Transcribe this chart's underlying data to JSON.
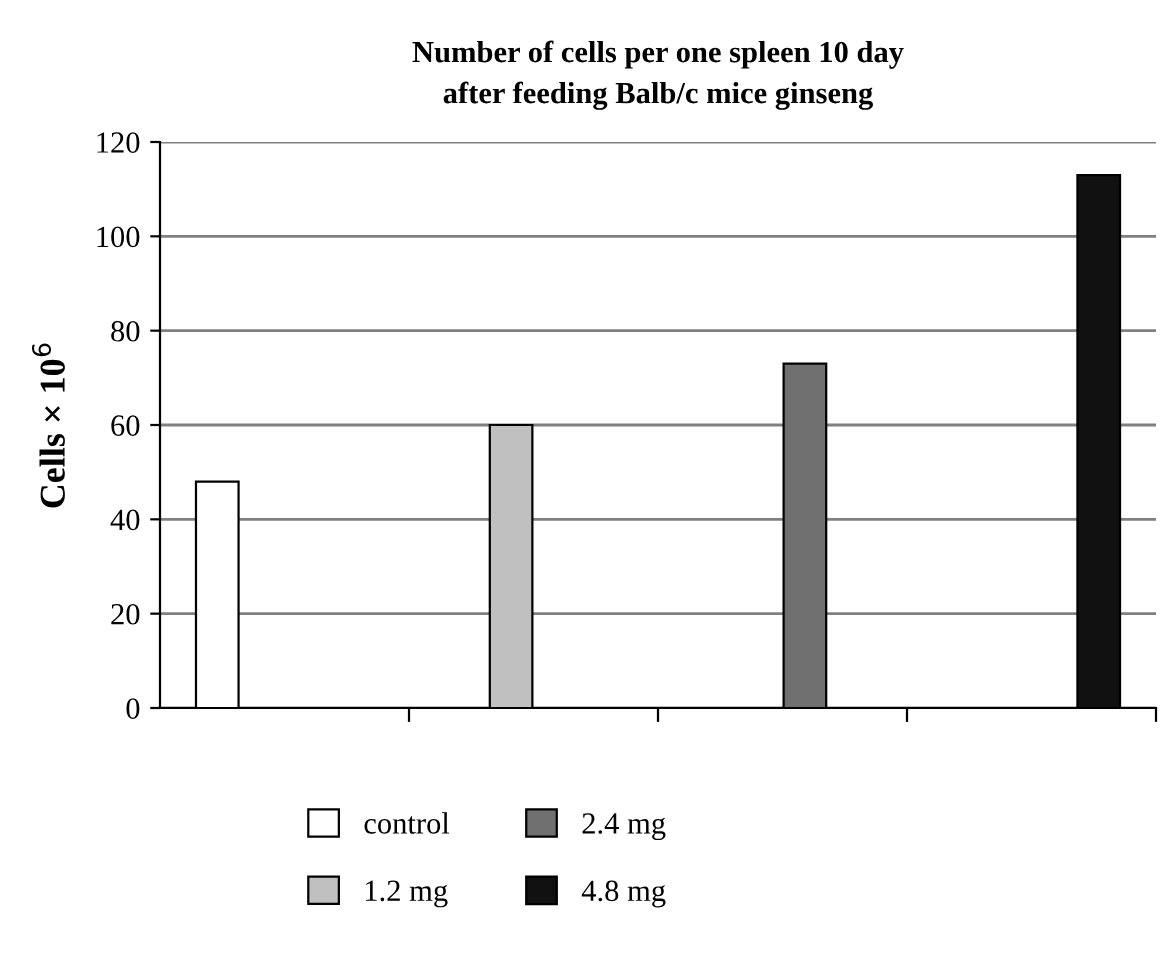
{
  "chart_data": {
    "type": "bar",
    "title": "Number of cells per one spleen 10 day\nafter feeding Balb/c mice ginseng",
    "ylabel": "Cells × 10$^{6}$",
    "categories": [
      null,
      null,
      null,
      null
    ],
    "series": [
      {
        "name": "control",
        "color": "#ffffff",
        "values": [
          48,
          null,
          null,
          null
        ]
      },
      {
        "name": "1.2 mg",
        "color": "#c0c0c0",
        "values": [
          null,
          60,
          null,
          null
        ]
      },
      {
        "name": "2.4 mg",
        "color": "#707070",
        "values": [
          null,
          null,
          73,
          null
        ]
      },
      {
        "name": "4.8 mg",
        "color": "#111111",
        "values": [
          null,
          null,
          null,
          113
        ]
      }
    ],
    "ylim": [
      0,
      120
    ],
    "yticks": [
      0,
      20,
      40,
      60,
      80,
      100,
      120
    ],
    "grid": "y",
    "legend": "bottom"
  }
}
